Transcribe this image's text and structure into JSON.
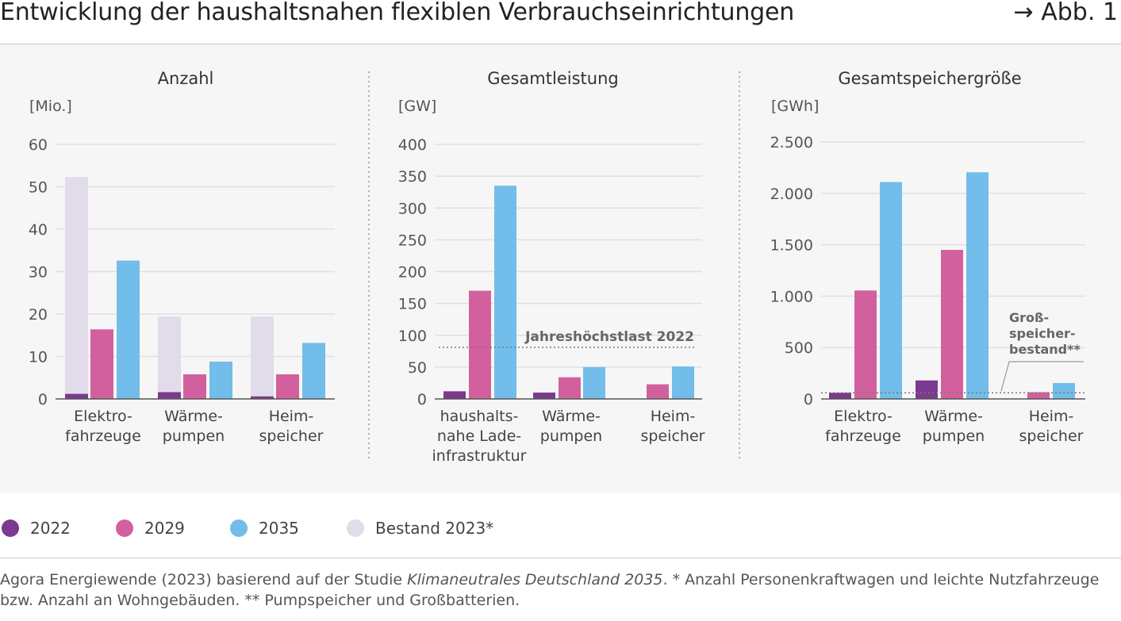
{
  "title": "Entwicklung der haushaltsnahen flexiblen Verbrauchseinrichtungen",
  "figure_ref": "→ Abb. 1",
  "colors": {
    "y2022": "#7b3a8e",
    "y2029": "#d2609f",
    "y2035": "#72bde9",
    "bestand": "#e2dbea",
    "grid": "#e0e0e0",
    "axis": "#555555",
    "text": "#444444"
  },
  "legend": [
    {
      "label": "2022",
      "color": "#7b3a8e"
    },
    {
      "label": "2029",
      "color": "#d2609f"
    },
    {
      "label": "2035",
      "color": "#72bde9"
    },
    {
      "label": "Bestand 2023*",
      "color": "#e2dbea"
    }
  ],
  "source": {
    "text_before": "Agora Energiewende (2023) basierend auf der Studie ",
    "italic": "Klimaneutrales Deutschland 2035",
    "text_after": ". * Anzahl Personenkraftwagen und leichte Nutzfahrzeuge",
    "line2": "bzw. Anzahl an Wohngebäuden. ** Pumpspeicher und Großbatterien."
  },
  "chart_data": [
    {
      "type": "bar",
      "title": "Anzahl",
      "ylabel": "[Mio.]",
      "ylim": [
        0,
        60
      ],
      "ticks": [
        0,
        10,
        20,
        30,
        40,
        50,
        60
      ],
      "tick_labels": [
        "0",
        "10",
        "20",
        "30",
        "40",
        "50",
        "60"
      ],
      "categories": [
        [
          "Elektro-",
          "fahrzeuge"
        ],
        [
          "Wärme-",
          "pumpen"
        ],
        [
          "Heim-",
          "speicher"
        ]
      ],
      "series": [
        {
          "name": "Bestand 2023*",
          "key": "bestand",
          "values": [
            52.3,
            19.4,
            19.4
          ]
        },
        {
          "name": "2022",
          "key": "y2022",
          "values": [
            1.2,
            1.6,
            0.6
          ]
        },
        {
          "name": "2029",
          "key": "y2029",
          "values": [
            16.4,
            5.8,
            5.8
          ]
        },
        {
          "name": "2035",
          "key": "y2035",
          "values": [
            32.6,
            8.8,
            13.2
          ]
        }
      ]
    },
    {
      "type": "bar",
      "title": "Gesamtleistung",
      "ylabel": "[GW]",
      "ylim": [
        0,
        400
      ],
      "ticks": [
        0,
        50,
        100,
        150,
        200,
        250,
        300,
        350,
        400
      ],
      "tick_labels": [
        "0",
        "50",
        "100",
        "150",
        "200",
        "250",
        "300",
        "350",
        "400"
      ],
      "categories": [
        [
          "haushalts-",
          "nahe Lade-",
          "infrastruktur"
        ],
        [
          "Wärme-",
          "pumpen"
        ],
        [
          "Heim-",
          "speicher"
        ]
      ],
      "series": [
        {
          "name": "2022",
          "key": "y2022",
          "values": [
            12,
            10,
            0
          ]
        },
        {
          "name": "2029",
          "key": "y2029",
          "values": [
            170,
            34,
            23
          ]
        },
        {
          "name": "2035",
          "key": "y2035",
          "values": [
            335,
            50,
            51
          ]
        }
      ],
      "reference_line": {
        "value": 81,
        "label": "Jahreshöchstlast 2022"
      }
    },
    {
      "type": "bar",
      "title": "Gesamtspeichergröße",
      "ylabel": "[GWh]",
      "ylim": [
        0,
        2500
      ],
      "ticks": [
        0,
        500,
        1000,
        1500,
        2000,
        2500
      ],
      "tick_labels": [
        "0",
        "500",
        "1.000",
        "1.500",
        "2.000",
        "2.500"
      ],
      "categories": [
        [
          "Elektro-",
          "fahrzeuge"
        ],
        [
          "Wärme-",
          "pumpen"
        ],
        [
          "Heim-",
          "speicher"
        ]
      ],
      "series": [
        {
          "name": "2022",
          "key": "y2022",
          "values": [
            60,
            180,
            0
          ]
        },
        {
          "name": "2029",
          "key": "y2029",
          "values": [
            1055,
            1450,
            65
          ]
        },
        {
          "name": "2035",
          "key": "y2035",
          "values": [
            2110,
            2205,
            155
          ]
        }
      ],
      "reference_line": {
        "value": 60,
        "label_lines": [
          "Groß-",
          "speicher-",
          "bestand**"
        ]
      }
    }
  ]
}
